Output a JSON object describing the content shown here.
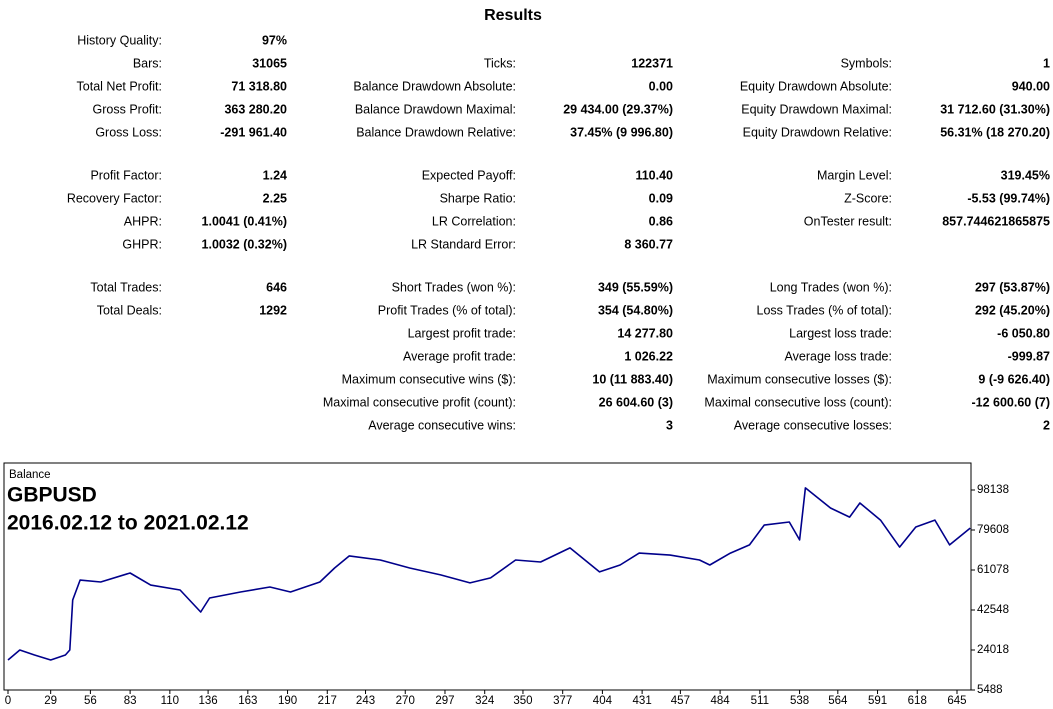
{
  "title": "Results",
  "sections": [
    {
      "rows": [
        [
          {
            "label": "History Quality:",
            "value": "97%"
          },
          null,
          null
        ],
        [
          {
            "label": "Bars:",
            "value": "31065"
          },
          {
            "label": "Ticks:",
            "value": "122371"
          },
          {
            "label": "Symbols:",
            "value": "1"
          }
        ],
        [
          {
            "label": "Total Net Profit:",
            "value": "71 318.80"
          },
          {
            "label": "Balance Drawdown Absolute:",
            "value": "0.00"
          },
          {
            "label": "Equity Drawdown Absolute:",
            "value": "940.00"
          }
        ],
        [
          {
            "label": "Gross Profit:",
            "value": "363 280.20"
          },
          {
            "label": "Balance Drawdown Maximal:",
            "value": "29 434.00 (29.37%)"
          },
          {
            "label": "Equity Drawdown Maximal:",
            "value": "31 712.60 (31.30%)"
          }
        ],
        [
          {
            "label": "Gross Loss:",
            "value": "-291 961.40"
          },
          {
            "label": "Balance Drawdown Relative:",
            "value": "37.45% (9 996.80)"
          },
          {
            "label": "Equity Drawdown Relative:",
            "value": "56.31% (18 270.20)"
          }
        ]
      ]
    },
    {
      "rows": [
        [
          {
            "label": "Profit Factor:",
            "value": "1.24"
          },
          {
            "label": "Expected Payoff:",
            "value": "110.40"
          },
          {
            "label": "Margin Level:",
            "value": "319.45%"
          }
        ],
        [
          {
            "label": "Recovery Factor:",
            "value": "2.25"
          },
          {
            "label": "Sharpe Ratio:",
            "value": "0.09"
          },
          {
            "label": "Z-Score:",
            "value": "-5.53 (99.74%)"
          }
        ],
        [
          {
            "label": "AHPR:",
            "value": "1.0041 (0.41%)"
          },
          {
            "label": "LR Correlation:",
            "value": "0.86"
          },
          {
            "label": "OnTester result:",
            "value": "857.744621865875"
          }
        ],
        [
          {
            "label": "GHPR:",
            "value": "1.0032 (0.32%)"
          },
          {
            "label": "LR Standard Error:",
            "value": "8 360.77"
          },
          null
        ]
      ]
    },
    {
      "rows": [
        [
          {
            "label": "Total Trades:",
            "value": "646"
          },
          {
            "label": "Short Trades (won %):",
            "value": "349 (55.59%)"
          },
          {
            "label": "Long Trades (won %):",
            "value": "297 (53.87%)"
          }
        ],
        [
          {
            "label": "Total Deals:",
            "value": "1292"
          },
          {
            "label": "Profit Trades (% of total):",
            "value": "354 (54.80%)"
          },
          {
            "label": "Loss Trades (% of total):",
            "value": "292 (45.20%)"
          }
        ],
        [
          null,
          {
            "label": "Largest profit trade:",
            "value": "14 277.80"
          },
          {
            "label": "Largest loss trade:",
            "value": "-6 050.80"
          }
        ],
        [
          null,
          {
            "label": "Average profit trade:",
            "value": "1 026.22"
          },
          {
            "label": "Average loss trade:",
            "value": "-999.87"
          }
        ],
        [
          null,
          {
            "label": "Maximum consecutive wins ($):",
            "value": "10 (11 883.40)"
          },
          {
            "label": "Maximum consecutive losses ($):",
            "value": "9 (-9 626.40)"
          }
        ],
        [
          null,
          {
            "label": "Maximal consecutive profit (count):",
            "value": "26 604.60 (3)"
          },
          {
            "label": "Maximal consecutive loss (count):",
            "value": "-12 600.60 (7)"
          }
        ],
        [
          null,
          {
            "label": "Average consecutive wins:",
            "value": "3"
          },
          {
            "label": "Average consecutive losses:",
            "value": "2"
          }
        ]
      ]
    }
  ],
  "chart_data": {
    "type": "line",
    "title": "GBPUSD",
    "subtitle": "2016.02.12 to 2021.02.12",
    "x": [
      0,
      8,
      18,
      29,
      39,
      42,
      44,
      49,
      63,
      83,
      97,
      117,
      131,
      137,
      158,
      178,
      192,
      212,
      222,
      232,
      253,
      273,
      294,
      314,
      328,
      345,
      362,
      382,
      402,
      416,
      429,
      450,
      470,
      477,
      491,
      504,
      514,
      531,
      538,
      542,
      559,
      572,
      579,
      593,
      606,
      617,
      630,
      640,
      654
    ],
    "series": [
      {
        "name": "Balance",
        "color": "#00008b",
        "values": [
          19400,
          24000,
          21700,
          19400,
          21700,
          24000,
          47200,
          56400,
          55500,
          59700,
          54100,
          51800,
          41600,
          48100,
          50900,
          53200,
          50900,
          55500,
          62000,
          67600,
          65700,
          62000,
          58800,
          55100,
          57400,
          65700,
          64800,
          71300,
          60200,
          63400,
          68900,
          68000,
          65700,
          63400,
          68900,
          72700,
          81900,
          83300,
          75000,
          99100,
          89800,
          85600,
          92100,
          84200,
          71700,
          81000,
          84200,
          72700,
          80500
        ]
      }
    ],
    "xlim": [
      0,
      655
    ],
    "xticks": [
      0,
      29,
      56,
      83,
      110,
      136,
      163,
      190,
      217,
      243,
      270,
      297,
      324,
      350,
      377,
      404,
      431,
      457,
      484,
      511,
      538,
      564,
      591,
      618,
      645
    ],
    "ylim": [
      5488,
      109720
    ],
    "yticks": [
      5488,
      24018,
      42548,
      61078,
      79608,
      98138
    ],
    "grid": false
  }
}
